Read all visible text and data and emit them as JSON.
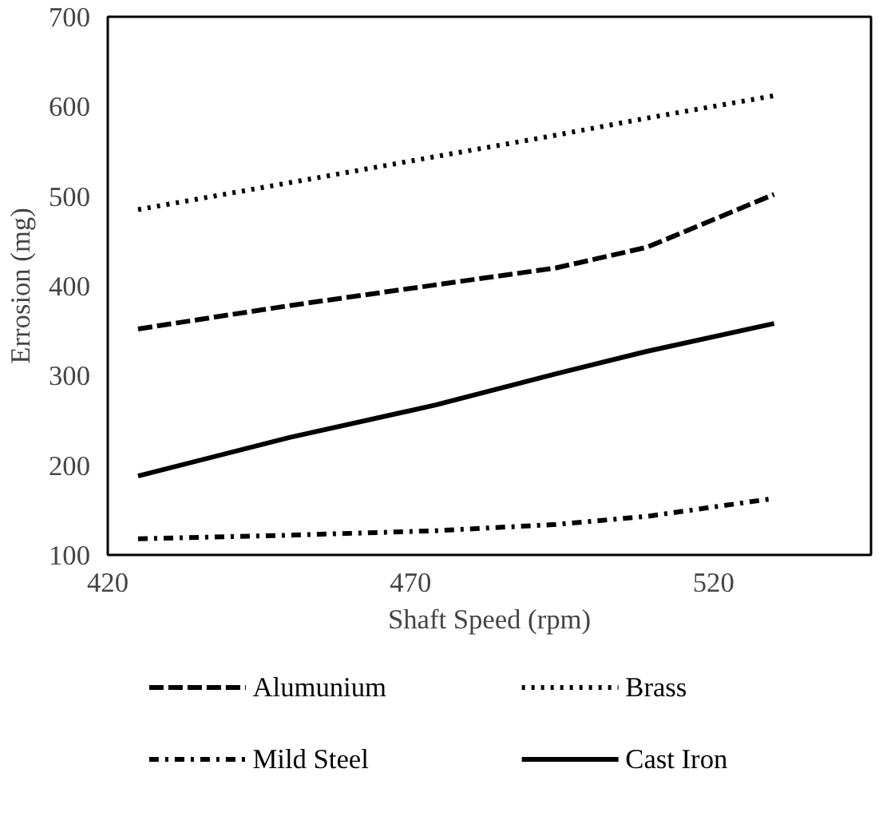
{
  "chart_data": {
    "type": "line",
    "xlabel": "Shaft Speed (rpm)",
    "ylabel": "Errosion (mg)",
    "x": [
      425,
      450,
      474,
      494,
      509,
      530
    ],
    "series": [
      {
        "name": "Alumunium",
        "color": "#000000",
        "line_style": "dashed",
        "values": [
          352,
          378,
          401,
          420,
          443,
          502
        ]
      },
      {
        "name": "Brass",
        "color": "#000000",
        "line_style": "dotted",
        "values": [
          485,
          515,
          544,
          568,
          587,
          612
        ]
      },
      {
        "name": "Mild Steel",
        "color": "#000000",
        "line_style": "dashdot",
        "values": [
          118,
          122,
          127,
          134,
          143,
          163
        ]
      },
      {
        "name": "Cast Iron",
        "color": "#000000",
        "line_style": "solid",
        "values": [
          188,
          231,
          267,
          302,
          327,
          358
        ]
      }
    ],
    "xlim": [
      420,
      546
    ],
    "xticks": [
      420,
      470,
      520
    ],
    "ylim": [
      100,
      700
    ],
    "yticks": [
      100,
      200,
      300,
      400,
      500,
      600,
      700
    ],
    "grid": false,
    "legend": "bottom"
  }
}
